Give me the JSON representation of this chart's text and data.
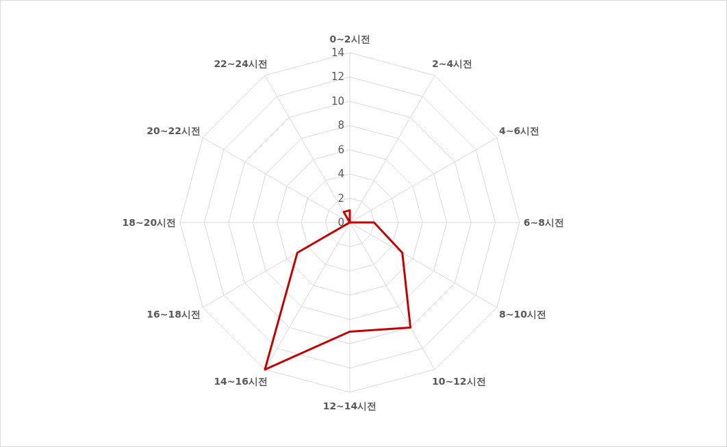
{
  "chart_data": {
    "type": "radar",
    "categories": [
      "0~2시전",
      "2~4시전",
      "4~6시전",
      "6~8시전",
      "8~10시전",
      "10~12시전",
      "12~14시전",
      "14~16시전",
      "16~18시전",
      "18~20시전",
      "20~22시전",
      "22~24시전"
    ],
    "series": [
      {
        "color": "#c00000",
        "values": [
          1,
          0,
          0,
          2,
          5,
          10,
          9,
          14,
          5,
          0,
          0,
          1
        ]
      }
    ],
    "ylim": [
      0,
      14
    ],
    "yticks": [
      0,
      2,
      4,
      6,
      8,
      10,
      12,
      14
    ],
    "grid": true,
    "marker": "none",
    "line_style": "solid"
  }
}
